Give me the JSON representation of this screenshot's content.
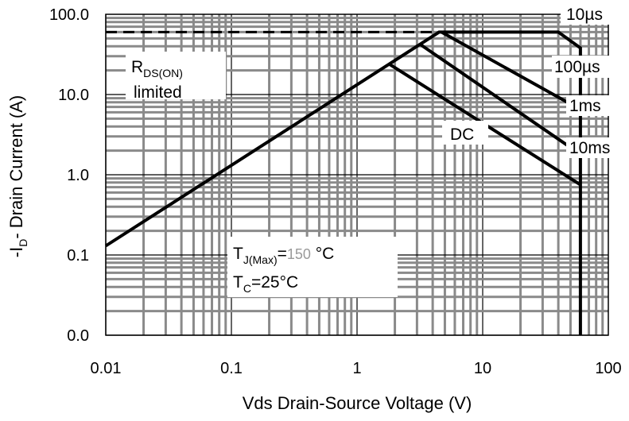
{
  "chart_data": {
    "type": "line",
    "xlabel": "Vds Drain-Source Voltage (V)",
    "ylabel_parts": {
      "pre": "-I",
      "sub": "D",
      "post": "- Drain Current (A)"
    },
    "xscale": "log",
    "yscale": "log",
    "xlim": [
      0.01,
      100
    ],
    "ylim": [
      0.01,
      100
    ],
    "xticks": [
      0.01,
      0.1,
      1,
      10,
      100
    ],
    "xtick_labels": [
      "0.01",
      "0.1",
      "1",
      "10",
      "100"
    ],
    "yticks": [
      0.01,
      0.1,
      1,
      10,
      100
    ],
    "ytick_labels": [
      "0.0",
      "0.1",
      "1.0",
      "10.0",
      "100.0"
    ],
    "grid": true,
    "series": [
      {
        "name": "RDS(ON) limited",
        "dashed": true,
        "x": [
          0.01,
          4.5
        ],
        "y": [
          60,
          60
        ]
      },
      {
        "name": "10µs",
        "x": [
          0.01,
          4.5,
          40,
          60,
          60
        ],
        "y": [
          0.13,
          60,
          60,
          38,
          0.01
        ]
      },
      {
        "name": "100µs",
        "x": [
          4.7,
          60
        ],
        "y": [
          60,
          6.5
        ]
      },
      {
        "name": "1ms",
        "x": [
          3.2,
          60
        ],
        "y": [
          42,
          1.8
        ]
      },
      {
        "name": "DC",
        "x": [
          1.8,
          60
        ],
        "y": [
          24,
          0.75
        ]
      }
    ],
    "annotations": {
      "rds_main": "R",
      "rds_sub": "DS(ON)",
      "rds_line2": "limited",
      "t10us": "10µs",
      "t100us": "100µs",
      "t1ms": "1ms",
      "t10ms": "10ms",
      "dc": "DC",
      "tj_main": "T",
      "tj_sub": "J(Max)",
      "tj_eq": "=",
      "tj_val": "150",
      "tj_unit": " °C",
      "tc_main": "T",
      "tc_sub": "C",
      "tc_rest": "=25°C"
    },
    "colors": {
      "grid": "#8a8a8a",
      "line": "#000000",
      "tj_value": "#9a9a9a"
    }
  }
}
